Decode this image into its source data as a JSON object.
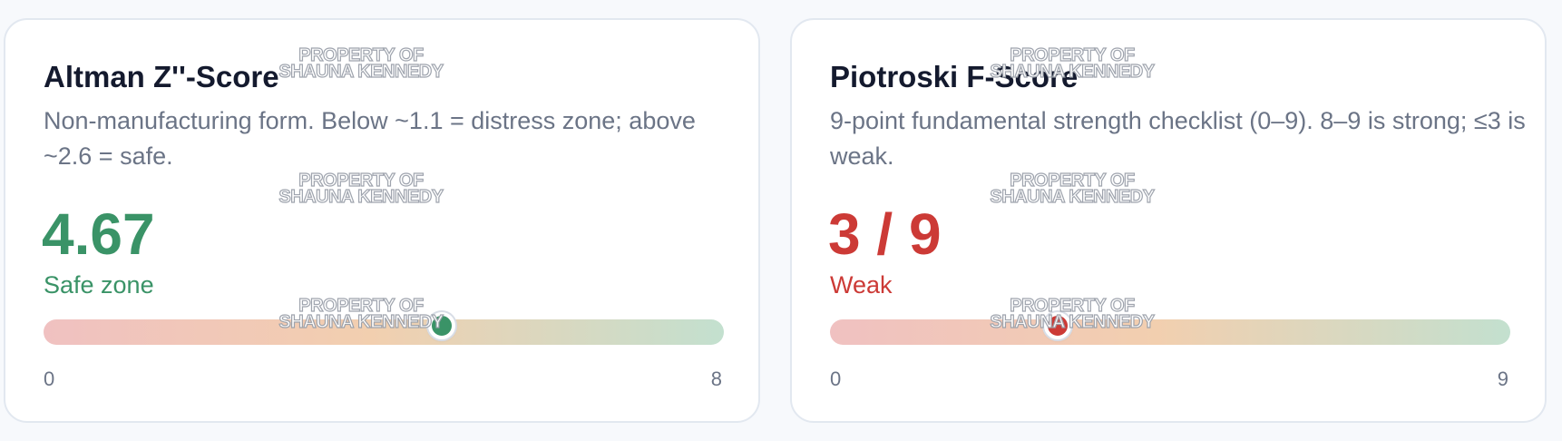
{
  "cards": [
    {
      "title": "Altman Z''-Score",
      "description": "Non-manufacturing form. Below ~1.1 = distress zone; above ~2.6 = safe.",
      "value": "4.67",
      "status": "Safe zone",
      "status_color": "#3a9367",
      "gauge": {
        "min": 0,
        "max": 8,
        "current": 4.67,
        "min_label": "0",
        "max_label": "8"
      }
    },
    {
      "title": "Piotroski F-Score",
      "description": "9-point fundamental strength checklist (0–9). 8–9 is strong; ≤3 is weak.",
      "value": "3 / 9",
      "status": "Weak",
      "status_color": "#cc3a36",
      "gauge": {
        "min": 0,
        "max": 9,
        "current": 3,
        "min_label": "0",
        "max_label": "9"
      }
    }
  ],
  "watermark": {
    "line1": "PROPERTY OF",
    "line2": "SHAUNA KENNEDY"
  }
}
